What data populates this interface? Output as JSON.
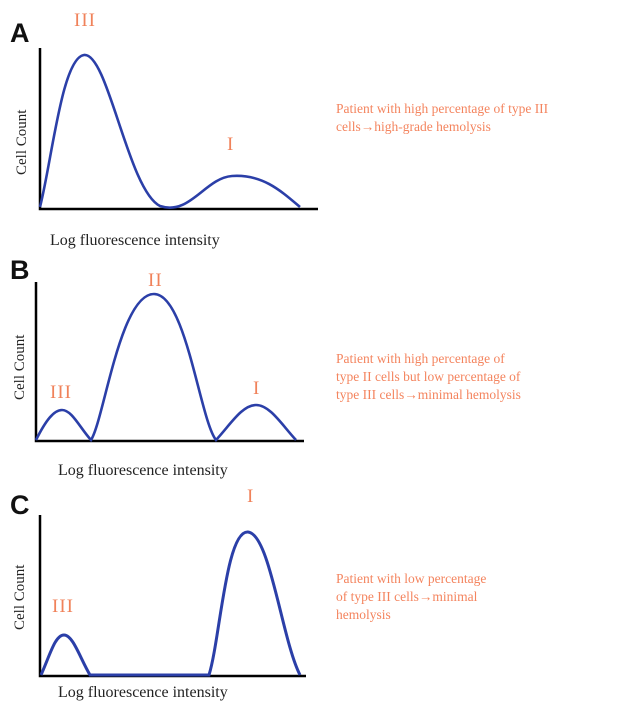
{
  "panels": [
    {
      "letter": "A",
      "ylabel": "Cell Count",
      "xlabel": "Log fluorescence intensity",
      "peaks": [
        {
          "label": "III"
        },
        {
          "label": "I"
        }
      ],
      "description_lines": [
        "Patient with high percentage of type III",
        "cells→high-grade hemolysis"
      ]
    },
    {
      "letter": "B",
      "ylabel": "Cell Count",
      "xlabel": "Log fluorescence intensity",
      "peaks": [
        {
          "label": "III"
        },
        {
          "label": "II"
        },
        {
          "label": "I"
        }
      ],
      "description_lines": [
        "Patient with high percentage of",
        "type II cells but low percentage of",
        "type III cells→minimal hemolysis"
      ]
    },
    {
      "letter": "C",
      "ylabel": "Cell Count",
      "xlabel": "Log fluorescence intensity",
      "peaks": [
        {
          "label": "III"
        },
        {
          "label": "I"
        }
      ],
      "description_lines": [
        "Patient with low percentage",
        "of type III cells→minimal",
        "hemolysis"
      ]
    }
  ],
  "colors": {
    "curve": "#2b3fa8",
    "annotation": "#f0825a",
    "axis": "#000000"
  }
}
